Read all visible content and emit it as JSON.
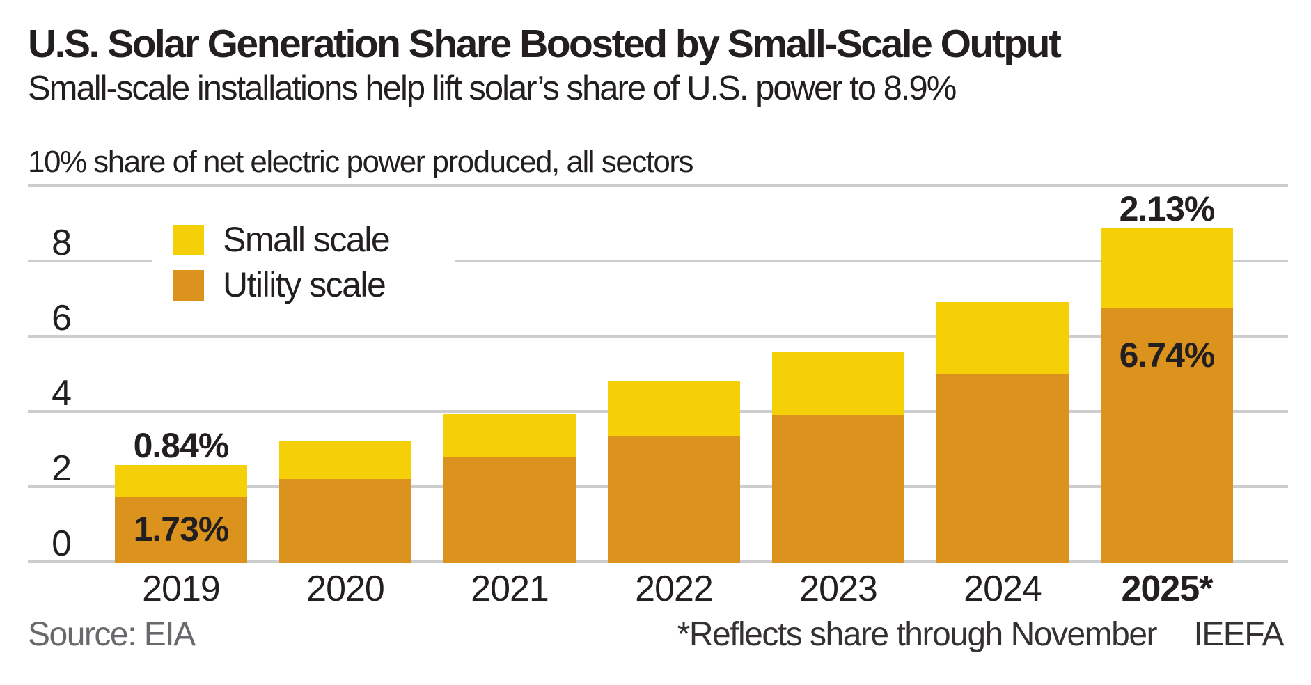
{
  "header": {
    "title": "U.S. Solar Generation Share Boosted by Small-Scale Output",
    "subtitle": "Small-scale installations help lift solar’s share of U.S. power to 8.9%"
  },
  "chart_data": {
    "type": "bar",
    "stacked": true,
    "title": "U.S. Solar Generation Share Boosted by Small-Scale Output",
    "axis_description": "10% share of net electric power produced, all sectors",
    "ylabel": "share of net electric power produced, all sectors (%)",
    "categories": [
      "2019",
      "2020",
      "2021",
      "2022",
      "2023",
      "2024",
      "2025*"
    ],
    "series": [
      {
        "name": "Small scale",
        "color": "#F5D007",
        "values": [
          0.84,
          1.0,
          1.15,
          1.45,
          1.7,
          1.9,
          2.13
        ]
      },
      {
        "name": "Utility scale",
        "color": "#DC931D",
        "values": [
          1.73,
          2.2,
          2.8,
          3.35,
          3.9,
          5.0,
          6.74
        ]
      }
    ],
    "ylim": [
      0,
      10
    ],
    "yticks": [
      0,
      2,
      4,
      6,
      8,
      10
    ],
    "top_tick_in_axis_description": 10,
    "grid": true,
    "legend_position": "upper-left-inside",
    "bold_categories": [
      "2025*"
    ],
    "annotations": [
      {
        "category": "2019",
        "series": "Small scale",
        "text": "0.84%",
        "placement": "above-bar"
      },
      {
        "category": "2019",
        "series": "Utility scale",
        "text": "1.73%",
        "placement": "inside-utility"
      },
      {
        "category": "2025*",
        "series": "Small scale",
        "text": "2.13%",
        "placement": "above-bar"
      },
      {
        "category": "2025*",
        "series": "Utility scale",
        "text": "6.74%",
        "placement": "inside-utility"
      }
    ]
  },
  "footer": {
    "source": "Source: EIA",
    "footnote": "*Reflects share through November",
    "attribution": "IEEFA"
  },
  "colors": {
    "small_scale": "#F5D007",
    "utility_scale": "#DC931D",
    "gridline": "#CCCDCE",
    "text": "#231F20",
    "source_gray": "#68696C"
  }
}
